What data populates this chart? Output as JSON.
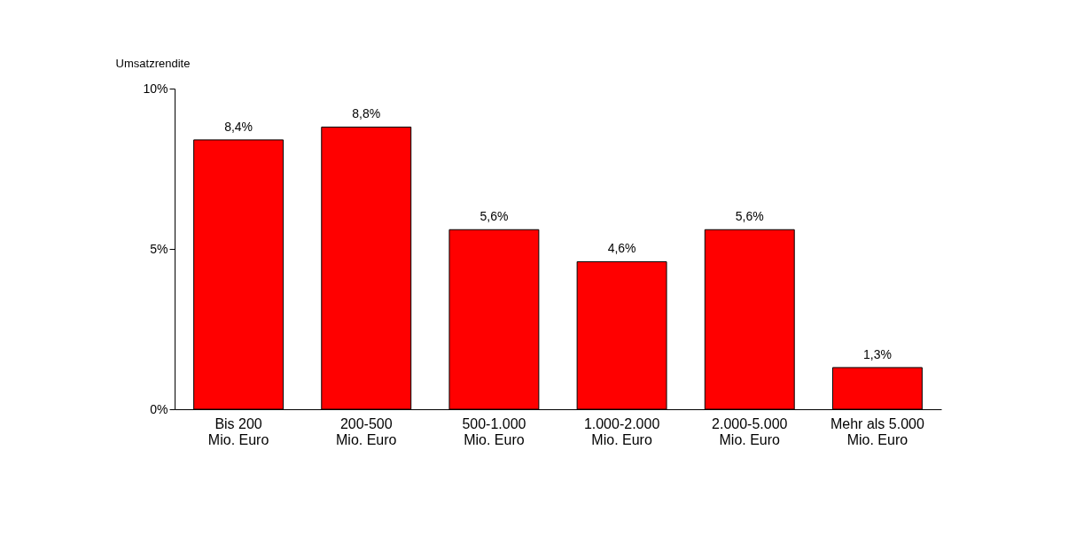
{
  "chart_data": {
    "type": "bar",
    "ylabel": "Umsatzrendite",
    "categories": [
      "Bis 200\nMio. Euro",
      "200-500\nMio. Euro",
      "500-1.000\nMio. Euro",
      "1.000-2.000\nMio. Euro",
      "2.000-5.000\nMio. Euro",
      "Mehr als 5.000\nMio. Euro"
    ],
    "values": [
      8.4,
      8.8,
      5.6,
      4.6,
      5.6,
      1.3
    ],
    "value_labels": [
      "8,4%",
      "8,8%",
      "5,6%",
      "4,6%",
      "5,6%",
      "1,3%"
    ],
    "color": "#ff0000",
    "ylim": [
      0,
      10
    ],
    "yticks": [
      {
        "value": 0,
        "label": "0%"
      },
      {
        "value": 5,
        "label": "5%"
      },
      {
        "value": 10,
        "label": "10%"
      }
    ],
    "grid": false
  }
}
